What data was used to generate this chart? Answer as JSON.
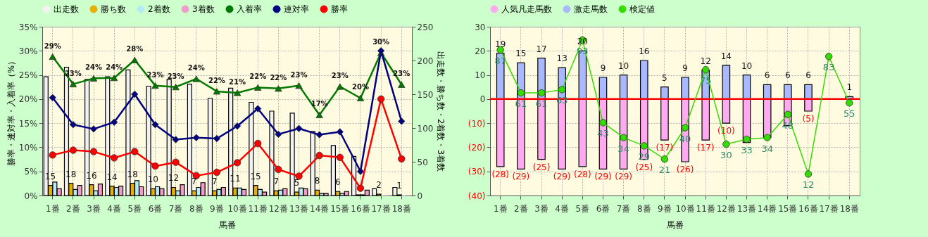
{
  "chart_data": [
    {
      "type": "bar",
      "xlabel": "馬番",
      "ylabel": "勝率・連対率・入着率（%）",
      "y2label": "出走数・勝ち数・2着数・3着数",
      "categories": [
        "1番",
        "2番",
        "3番",
        "4番",
        "5番",
        "6番",
        "7番",
        "8番",
        "9番",
        "10番",
        "11番",
        "12番",
        "13番",
        "14番",
        "15番",
        "16番",
        "17番",
        "18番"
      ],
      "ylim": [
        0,
        35
      ],
      "yticks": [
        {
          "value": 0,
          "label": "0%"
        },
        {
          "value": 5,
          "label": "5%"
        },
        {
          "value": 10,
          "label": "10%"
        },
        {
          "value": 15,
          "label": "15%"
        },
        {
          "value": 20,
          "label": "20%"
        },
        {
          "value": 25,
          "label": "25%"
        },
        {
          "value": 30,
          "label": "30%"
        },
        {
          "value": 35,
          "label": "35%"
        }
      ],
      "y2lim": [
        0,
        250
      ],
      "y2ticks": [
        0,
        50,
        100,
        150,
        200,
        250
      ],
      "grid": true,
      "legend": "top",
      "series": [
        {
          "name": "出走数",
          "axis": "y2",
          "color": "#f2f2f2",
          "values": [
            176,
            190,
            172,
            176,
            186,
            162,
            172,
            165,
            144,
            159,
            138,
            125,
            122,
            95,
            74,
            58,
            10,
            12
          ]
        },
        {
          "name": "勝ち数",
          "axis": "y2",
          "color": "#e6b000",
          "values": [
            15,
            18,
            16,
            14,
            18,
            10,
            12,
            7,
            7,
            11,
            15,
            7,
            5,
            8,
            6,
            1,
            2,
            1
          ],
          "value_labels": [
            "15",
            "18",
            "16",
            "14",
            "18",
            "10",
            "12",
            "7",
            "7",
            "11",
            "15",
            "7",
            "5",
            "8",
            "6",
            null,
            "2",
            "1"
          ]
        },
        {
          "name": "2着数",
          "axis": "y2",
          "color": "#b3ecf5",
          "values": [
            20,
            9,
            7,
            12,
            22,
            13,
            7,
            12,
            9,
            11,
            9,
            8,
            11,
            3,
            3,
            1,
            0,
            0
          ]
        },
        {
          "name": "3着数",
          "axis": "y2",
          "color": "#f29ccc",
          "values": [
            10,
            15,
            17,
            14,
            13,
            10,
            16,
            19,
            12,
            9,
            5,
            10,
            10,
            3,
            6,
            8,
            0,
            0
          ]
        },
        {
          "name": "入着率",
          "type": "line",
          "axis": "y",
          "color": "#007a00",
          "marker": "triangle",
          "values": [
            28.8,
            23.1,
            24.3,
            24.4,
            28.1,
            22.8,
            22.5,
            24.2,
            21.6,
            21.3,
            22.4,
            22.2,
            22.8,
            16.7,
            22.6,
            20.2,
            29.6,
            23.0
          ],
          "value_labels": [
            "29%",
            "23%",
            "24%",
            "24%",
            "28%",
            "23%",
            "23%",
            "24%",
            "22%",
            "21%",
            "22%",
            "22%",
            "23%",
            "17%",
            "23%",
            "20%",
            "30%",
            "23%"
          ]
        },
        {
          "name": "連対率",
          "type": "line",
          "axis": "y",
          "color": "#000080",
          "marker": "diamond",
          "values": [
            20.3,
            14.7,
            13.8,
            15.2,
            21.0,
            14.7,
            11.6,
            12.0,
            11.8,
            14.4,
            18.0,
            12.7,
            13.9,
            12.6,
            13.2,
            5.0,
            30.0,
            15.4
          ]
        },
        {
          "name": "勝率",
          "type": "line",
          "axis": "y",
          "color": "#ff0000",
          "marker": "circle",
          "values": [
            8.4,
            9.4,
            9.1,
            7.8,
            9.1,
            6.1,
            6.9,
            4.1,
            4.8,
            6.8,
            10.8,
            5.4,
            4.0,
            8.3,
            7.9,
            1.5,
            20.0,
            7.6
          ]
        }
      ]
    },
    {
      "type": "bar",
      "xlabel": "馬番",
      "stacked": true,
      "grid": true,
      "legend": "top",
      "categories": [
        "1番",
        "2番",
        "3番",
        "4番",
        "5番",
        "6番",
        "7番",
        "8番",
        "9番",
        "10番",
        "11番",
        "12番",
        "13番",
        "14番",
        "15番",
        "16番",
        "17番",
        "18番"
      ],
      "ylim": [
        -40,
        30
      ],
      "yticks": [
        30,
        20,
        10,
        0,
        {
          "value": -10,
          "label": "(10)"
        },
        {
          "value": -20,
          "label": "(20)"
        },
        {
          "value": -30,
          "label": "(30)"
        },
        {
          "value": -40,
          "label": "(40)"
        }
      ],
      "y2lim": [
        -1,
        101
      ],
      "ref_lines": [
        {
          "axis": "y",
          "value": 0,
          "color": "#ff0000"
        }
      ],
      "series": [
        {
          "name": "人気凡走馬数",
          "color": "#ffaaf0",
          "values": [
            -28,
            -29,
            -25,
            -29,
            -28,
            -29,
            -29,
            -25,
            -17,
            -26,
            -17,
            -10,
            -18,
            -16,
            -11,
            -5,
            null,
            null
          ],
          "value_labels": [
            "(28)",
            "(29)",
            "(25)",
            "(29)",
            "(28)",
            "(29)",
            "(29)",
            "(25)",
            "(17)",
            "(26)",
            "(17)",
            "(10)",
            null,
            null,
            null,
            "(5)",
            null,
            null
          ]
        },
        {
          "name": "激走馬数",
          "color": "#aab8ff",
          "values": [
            19,
            15,
            17,
            13,
            20,
            9,
            10,
            16,
            5,
            9,
            12,
            14,
            10,
            6,
            6,
            6,
            null,
            1
          ],
          "value_labels": [
            "19",
            "15",
            "17",
            "13",
            "20",
            "9",
            "10",
            "16",
            "5",
            "9",
            "12",
            "14",
            "10",
            "6",
            "6",
            "6",
            null,
            "1"
          ]
        },
        {
          "name": "検定値",
          "type": "line",
          "axis": "y2",
          "color": "#33dd00",
          "marker": "circle",
          "values": [
            87,
            61,
            61,
            63,
            93,
            43,
            34,
            29,
            21,
            40,
            75,
            30,
            33,
            34,
            48,
            12,
            83,
            55
          ],
          "value_labels": [
            "87",
            "61",
            "61",
            "63",
            "93",
            "43",
            "34",
            "29",
            "21",
            "40",
            "75",
            "30",
            "33",
            "34",
            "48",
            "12",
            "83",
            "55"
          ]
        }
      ]
    }
  ]
}
